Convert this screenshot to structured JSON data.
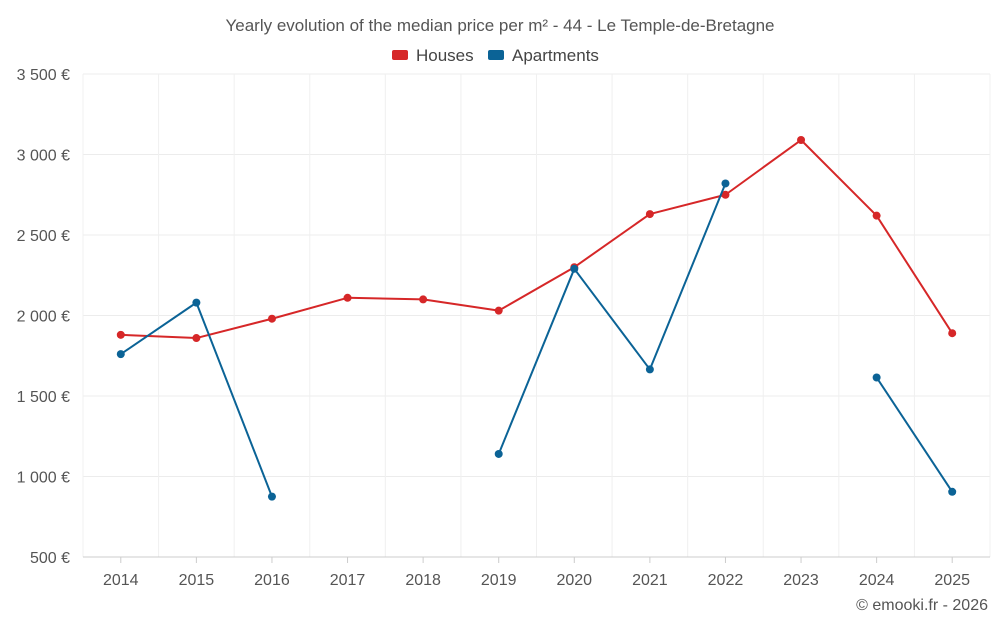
{
  "chart_data": {
    "type": "line",
    "title": "Yearly evolution of the median price per m² - 44 - Le Temple-de-Bretagne",
    "categories": [
      "2014",
      "2015",
      "2016",
      "2017",
      "2018",
      "2019",
      "2020",
      "2021",
      "2022",
      "2023",
      "2024",
      "2025"
    ],
    "y_ticks": [
      500,
      1000,
      1500,
      2000,
      2500,
      3000,
      3500
    ],
    "y_tick_labels": [
      "500 €",
      "1 000 €",
      "1 500 €",
      "2 000 €",
      "2 500 €",
      "3 000 €",
      "3 500 €"
    ],
    "ylim": [
      500,
      3500
    ],
    "grid": true,
    "legend_position": "top-center",
    "series": [
      {
        "name": "Houses",
        "color": "#d62728",
        "values": [
          1880,
          1860,
          1980,
          2110,
          2100,
          2030,
          2300,
          2630,
          2750,
          3090,
          2620,
          1890
        ]
      },
      {
        "name": "Apartments",
        "color": "#0b6396",
        "values": [
          1760,
          2080,
          875,
          null,
          null,
          1140,
          2290,
          1665,
          2820,
          null,
          1615,
          905
        ]
      }
    ],
    "footer": "© emooki.fr - 2026"
  }
}
